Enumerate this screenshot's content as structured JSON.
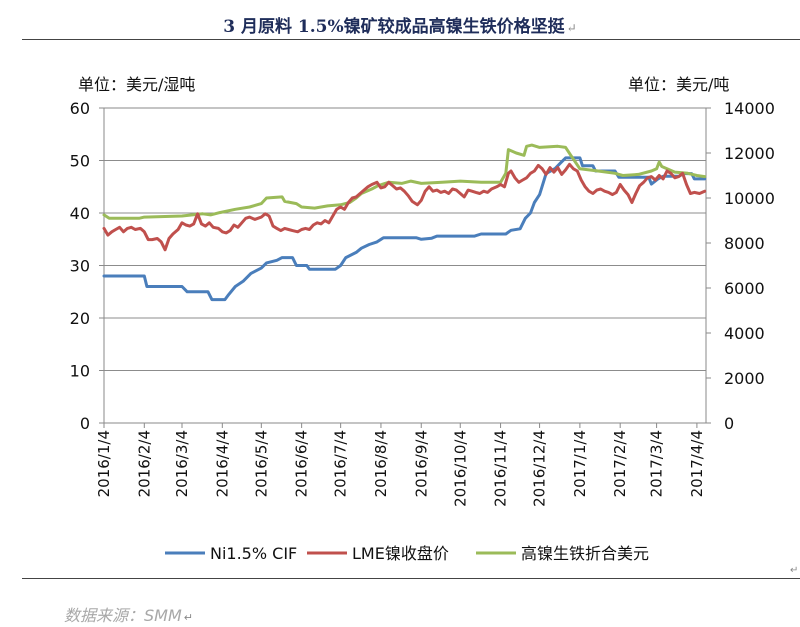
{
  "title": "3 月原料 1.5%镍矿较成品高镍生铁价格坚挺",
  "return_mark": "↵",
  "source": "数据来源：SMM",
  "chart_data": {
    "type": "line",
    "ylabel_left": "单位：美元/湿吨",
    "ylabel_right": "单位：美元/吨",
    "ylim_left": [
      0,
      60
    ],
    "ylim_right": [
      0,
      14000
    ],
    "yticks_left": [
      "0",
      "10",
      "20",
      "30",
      "40",
      "50",
      "60"
    ],
    "yticks_right": [
      "0",
      "2000",
      "4000",
      "6000",
      "8000",
      "10000",
      "12000",
      "14000"
    ],
    "xticks": [
      "2016/1/4",
      "2016/2/4",
      "2016/3/4",
      "2016/4/4",
      "2016/5/4",
      "2016/6/4",
      "2016/7/4",
      "2016/8/4",
      "2016/9/4",
      "2016/10/4",
      "2016/11/4",
      "2016/12/4",
      "2017/1/4",
      "2017/2/4",
      "2017/3/4",
      "2017/4/4"
    ],
    "grid": true,
    "legend": "bottom",
    "series": [
      {
        "name": "Ni1.5% CIF",
        "axis": "left",
        "color": "#4a7ebb",
        "points": [
          [
            "2016-01-04",
            28
          ],
          [
            "2016-02-04",
            28
          ],
          [
            "2016-02-06",
            26
          ],
          [
            "2016-03-04",
            26
          ],
          [
            "2016-03-08",
            25
          ],
          [
            "2016-03-24",
            25
          ],
          [
            "2016-03-27",
            23.5
          ],
          [
            "2016-04-06",
            23.5
          ],
          [
            "2016-04-09",
            24.5
          ],
          [
            "2016-04-14",
            26
          ],
          [
            "2016-04-20",
            27
          ],
          [
            "2016-04-26",
            28.5
          ],
          [
            "2016-05-04",
            29.5
          ],
          [
            "2016-05-08",
            30.5
          ],
          [
            "2016-05-16",
            31
          ],
          [
            "2016-05-20",
            31.5
          ],
          [
            "2016-05-28",
            31.5
          ],
          [
            "2016-05-31",
            30
          ],
          [
            "2016-06-08",
            30
          ],
          [
            "2016-06-10",
            29.3
          ],
          [
            "2016-06-30",
            29.3
          ],
          [
            "2016-07-04",
            30
          ],
          [
            "2016-07-08",
            31.5
          ],
          [
            "2016-07-16",
            32.5
          ],
          [
            "2016-07-20",
            33.3
          ],
          [
            "2016-07-26",
            34
          ],
          [
            "2016-08-01",
            34.5
          ],
          [
            "2016-08-06",
            35.3
          ],
          [
            "2016-08-31",
            35.3
          ],
          [
            "2016-09-04",
            35
          ],
          [
            "2016-09-12",
            35.2
          ],
          [
            "2016-09-16",
            35.6
          ],
          [
            "2016-10-15",
            35.6
          ],
          [
            "2016-10-20",
            36
          ],
          [
            "2016-11-08",
            36
          ],
          [
            "2016-11-12",
            36.7
          ],
          [
            "2016-11-19",
            37
          ],
          [
            "2016-11-23",
            39
          ],
          [
            "2016-11-27",
            40
          ],
          [
            "2016-11-30",
            42
          ],
          [
            "2016-12-04",
            43.5
          ],
          [
            "2016-12-09",
            47.5
          ],
          [
            "2016-12-16",
            48.5
          ],
          [
            "2016-12-20",
            49.5
          ],
          [
            "2016-12-24",
            50.5
          ],
          [
            "2017-01-04",
            50.5
          ],
          [
            "2017-01-06",
            49
          ],
          [
            "2017-01-14",
            49
          ],
          [
            "2017-01-16",
            48
          ],
          [
            "2017-01-31",
            48
          ],
          [
            "2017-02-03",
            46.8
          ],
          [
            "2017-02-26",
            46.8
          ],
          [
            "2017-02-28",
            45.5
          ],
          [
            "2017-03-05",
            46.5
          ],
          [
            "2017-03-09",
            47
          ],
          [
            "2017-03-21",
            47
          ],
          [
            "2017-03-25",
            47.5
          ],
          [
            "2017-03-31",
            47.5
          ],
          [
            "2017-04-02",
            46.5
          ],
          [
            "2017-04-10",
            46.5
          ]
        ]
      },
      {
        "name": "LME镍收盘价",
        "axis": "right",
        "color": "#c0504d",
        "points": [
          [
            "2016-01-04",
            8650
          ],
          [
            "2016-01-07",
            8350
          ],
          [
            "2016-01-10",
            8500
          ],
          [
            "2016-01-13",
            8600
          ],
          [
            "2016-01-16",
            8700
          ],
          [
            "2016-01-19",
            8500
          ],
          [
            "2016-01-22",
            8650
          ],
          [
            "2016-01-25",
            8700
          ],
          [
            "2016-01-28",
            8600
          ],
          [
            "2016-02-01",
            8650
          ],
          [
            "2016-02-04",
            8500
          ],
          [
            "2016-02-07",
            8150
          ],
          [
            "2016-02-10",
            8150
          ],
          [
            "2016-02-14",
            8200
          ],
          [
            "2016-02-17",
            8050
          ],
          [
            "2016-02-20",
            7700
          ],
          [
            "2016-02-23",
            8200
          ],
          [
            "2016-02-26",
            8400
          ],
          [
            "2016-03-01",
            8600
          ],
          [
            "2016-03-04",
            8900
          ],
          [
            "2016-03-07",
            8800
          ],
          [
            "2016-03-10",
            8750
          ],
          [
            "2016-03-13",
            8850
          ],
          [
            "2016-03-16",
            9300
          ],
          [
            "2016-03-19",
            8850
          ],
          [
            "2016-03-22",
            8750
          ],
          [
            "2016-03-25",
            8900
          ],
          [
            "2016-03-28",
            8700
          ],
          [
            "2016-04-01",
            8650
          ],
          [
            "2016-04-04",
            8500
          ],
          [
            "2016-04-07",
            8450
          ],
          [
            "2016-04-10",
            8550
          ],
          [
            "2016-04-13",
            8800
          ],
          [
            "2016-04-16",
            8700
          ],
          [
            "2016-04-19",
            8900
          ],
          [
            "2016-04-22",
            9100
          ],
          [
            "2016-04-25",
            9150
          ],
          [
            "2016-04-29",
            9050
          ],
          [
            "2016-05-04",
            9150
          ],
          [
            "2016-05-07",
            9300
          ],
          [
            "2016-05-10",
            9200
          ],
          [
            "2016-05-13",
            8750
          ],
          [
            "2016-05-16",
            8650
          ],
          [
            "2016-05-19",
            8550
          ],
          [
            "2016-05-22",
            8650
          ],
          [
            "2016-05-25",
            8600
          ],
          [
            "2016-05-28",
            8550
          ],
          [
            "2016-06-01",
            8500
          ],
          [
            "2016-06-04",
            8600
          ],
          [
            "2016-06-07",
            8650
          ],
          [
            "2016-06-10",
            8600
          ],
          [
            "2016-06-13",
            8800
          ],
          [
            "2016-06-16",
            8900
          ],
          [
            "2016-06-19",
            8850
          ],
          [
            "2016-06-22",
            9000
          ],
          [
            "2016-06-25",
            8900
          ],
          [
            "2016-06-28",
            9200
          ],
          [
            "2016-07-01",
            9500
          ],
          [
            "2016-07-04",
            9600
          ],
          [
            "2016-07-07",
            9500
          ],
          [
            "2016-07-10",
            9800
          ],
          [
            "2016-07-13",
            10000
          ],
          [
            "2016-07-16",
            10050
          ],
          [
            "2016-07-19",
            10200
          ],
          [
            "2016-07-22",
            10350
          ],
          [
            "2016-07-25",
            10500
          ],
          [
            "2016-07-28",
            10600
          ],
          [
            "2016-08-01",
            10700
          ],
          [
            "2016-08-04",
            10450
          ],
          [
            "2016-08-07",
            10500
          ],
          [
            "2016-08-10",
            10700
          ],
          [
            "2016-08-13",
            10550
          ],
          [
            "2016-08-16",
            10400
          ],
          [
            "2016-08-19",
            10450
          ],
          [
            "2016-08-22",
            10300
          ],
          [
            "2016-08-25",
            10100
          ],
          [
            "2016-08-28",
            9850
          ],
          [
            "2016-09-01",
            9700
          ],
          [
            "2016-09-04",
            9900
          ],
          [
            "2016-09-07",
            10300
          ],
          [
            "2016-09-10",
            10500
          ],
          [
            "2016-09-13",
            10300
          ],
          [
            "2016-09-16",
            10350
          ],
          [
            "2016-09-19",
            10250
          ],
          [
            "2016-09-22",
            10300
          ],
          [
            "2016-09-25",
            10200
          ],
          [
            "2016-09-28",
            10400
          ],
          [
            "2016-10-01",
            10350
          ],
          [
            "2016-10-04",
            10200
          ],
          [
            "2016-10-07",
            10050
          ],
          [
            "2016-10-10",
            10350
          ],
          [
            "2016-10-13",
            10300
          ],
          [
            "2016-10-16",
            10250
          ],
          [
            "2016-10-19",
            10200
          ],
          [
            "2016-10-22",
            10300
          ],
          [
            "2016-10-25",
            10250
          ],
          [
            "2016-10-28",
            10400
          ],
          [
            "2016-11-01",
            10500
          ],
          [
            "2016-11-04",
            10600
          ],
          [
            "2016-11-07",
            10500
          ],
          [
            "2016-11-10",
            11100
          ],
          [
            "2016-11-12",
            11200
          ],
          [
            "2016-11-15",
            10900
          ],
          [
            "2016-11-18",
            10700
          ],
          [
            "2016-11-21",
            10800
          ],
          [
            "2016-11-24",
            10900
          ],
          [
            "2016-11-27",
            11100
          ],
          [
            "2016-11-30",
            11200
          ],
          [
            "2016-12-03",
            11450
          ],
          [
            "2016-12-06",
            11300
          ],
          [
            "2016-12-09",
            11050
          ],
          [
            "2016-12-12",
            11350
          ],
          [
            "2016-12-15",
            11150
          ],
          [
            "2016-12-18",
            11350
          ],
          [
            "2016-12-21",
            11050
          ],
          [
            "2016-12-24",
            11250
          ],
          [
            "2016-12-27",
            11500
          ],
          [
            "2016-12-30",
            11300
          ],
          [
            "2017-01-02",
            11200
          ],
          [
            "2017-01-05",
            10800
          ],
          [
            "2017-01-08",
            10500
          ],
          [
            "2017-01-11",
            10300
          ],
          [
            "2017-01-14",
            10200
          ],
          [
            "2017-01-17",
            10350
          ],
          [
            "2017-01-20",
            10400
          ],
          [
            "2017-01-23",
            10300
          ],
          [
            "2017-01-26",
            10250
          ],
          [
            "2017-01-29",
            10150
          ],
          [
            "2017-02-01",
            10250
          ],
          [
            "2017-02-04",
            10600
          ],
          [
            "2017-02-07",
            10350
          ],
          [
            "2017-02-10",
            10150
          ],
          [
            "2017-02-13",
            9800
          ],
          [
            "2017-02-16",
            10200
          ],
          [
            "2017-02-19",
            10550
          ],
          [
            "2017-02-22",
            10700
          ],
          [
            "2017-02-25",
            10900
          ],
          [
            "2017-02-28",
            10950
          ],
          [
            "2017-03-03",
            10800
          ],
          [
            "2017-03-06",
            11000
          ],
          [
            "2017-03-09",
            10850
          ],
          [
            "2017-03-12",
            11200
          ],
          [
            "2017-03-15",
            11100
          ],
          [
            "2017-03-18",
            10900
          ],
          [
            "2017-03-21",
            10950
          ],
          [
            "2017-03-24",
            11100
          ],
          [
            "2017-03-27",
            10600
          ],
          [
            "2017-03-30",
            10200
          ],
          [
            "2017-04-02",
            10250
          ],
          [
            "2017-04-06",
            10200
          ],
          [
            "2017-04-10",
            10300
          ]
        ]
      },
      {
        "name": "高镍生铁折合美元",
        "axis": "right",
        "color": "#9bbb59",
        "points": [
          [
            "2016-01-04",
            9250
          ],
          [
            "2016-01-08",
            9100
          ],
          [
            "2016-01-31",
            9100
          ],
          [
            "2016-02-04",
            9150
          ],
          [
            "2016-03-04",
            9200
          ],
          [
            "2016-03-20",
            9300
          ],
          [
            "2016-03-26",
            9250
          ],
          [
            "2016-04-02",
            9350
          ],
          [
            "2016-04-14",
            9500
          ],
          [
            "2016-04-25",
            9600
          ],
          [
            "2016-05-04",
            9750
          ],
          [
            "2016-05-08",
            10000
          ],
          [
            "2016-05-20",
            10050
          ],
          [
            "2016-05-22",
            9850
          ],
          [
            "2016-05-31",
            9750
          ],
          [
            "2016-06-04",
            9600
          ],
          [
            "2016-06-14",
            9550
          ],
          [
            "2016-06-24",
            9650
          ],
          [
            "2016-07-04",
            9700
          ],
          [
            "2016-07-11",
            9800
          ],
          [
            "2016-07-16",
            10000
          ],
          [
            "2016-07-20",
            10200
          ],
          [
            "2016-07-28",
            10400
          ],
          [
            "2016-08-02",
            10550
          ],
          [
            "2016-08-10",
            10700
          ],
          [
            "2016-08-20",
            10650
          ],
          [
            "2016-08-27",
            10750
          ],
          [
            "2016-09-04",
            10650
          ],
          [
            "2016-09-20",
            10700
          ],
          [
            "2016-10-04",
            10750
          ],
          [
            "2016-10-20",
            10700
          ],
          [
            "2016-11-04",
            10700
          ],
          [
            "2016-11-08",
            11100
          ],
          [
            "2016-11-10",
            12150
          ],
          [
            "2016-11-16",
            12000
          ],
          [
            "2016-11-22",
            11900
          ],
          [
            "2016-11-24",
            12300
          ],
          [
            "2016-11-28",
            12350
          ],
          [
            "2016-12-04",
            12250
          ],
          [
            "2016-12-18",
            12300
          ],
          [
            "2016-12-24",
            12250
          ],
          [
            "2016-12-28",
            11900
          ],
          [
            "2017-01-04",
            11300
          ],
          [
            "2017-01-18",
            11200
          ],
          [
            "2017-01-31",
            11100
          ],
          [
            "2017-02-06",
            11000
          ],
          [
            "2017-02-18",
            11050
          ],
          [
            "2017-02-28",
            11200
          ],
          [
            "2017-03-04",
            11300
          ],
          [
            "2017-03-06",
            11600
          ],
          [
            "2017-03-08",
            11400
          ],
          [
            "2017-03-18",
            11150
          ],
          [
            "2017-03-28",
            11100
          ],
          [
            "2017-04-04",
            11000
          ],
          [
            "2017-04-10",
            10950
          ]
        ]
      }
    ]
  }
}
